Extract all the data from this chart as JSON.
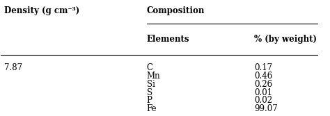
{
  "col1_header": "Density (g cm⁻³)",
  "col2_header": "Composition",
  "sub_col2": "Elements",
  "sub_col3": "% (by weight)",
  "density": "7.87",
  "elements": [
    "C",
    "Mn",
    "Si",
    "S",
    "P",
    "Fe"
  ],
  "percentages": [
    "0.17",
    "0.46",
    "0.26",
    "0.01",
    "0.02",
    "99.07"
  ],
  "bg_color": "#ffffff",
  "text_color": "#000000",
  "font_size": 8.5
}
